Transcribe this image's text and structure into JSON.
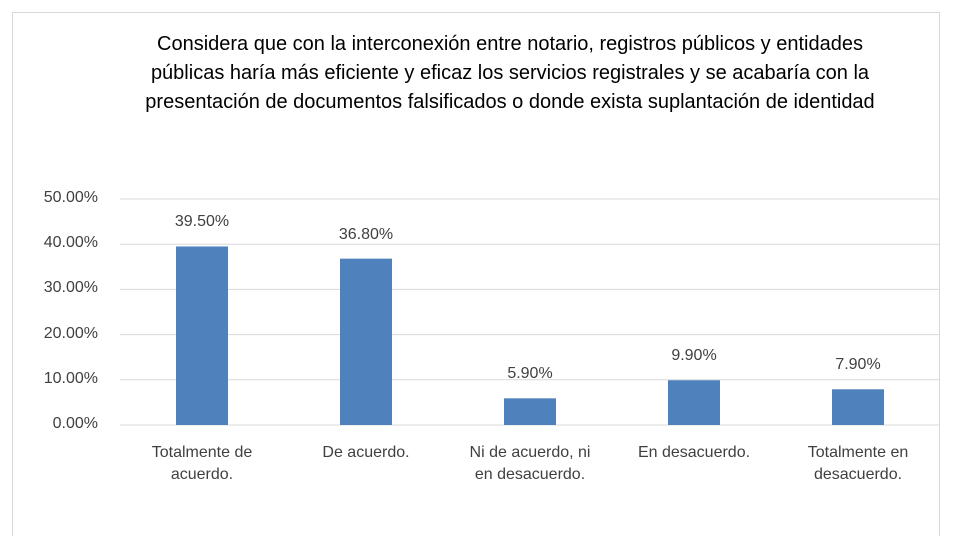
{
  "chart_data": {
    "type": "bar",
    "title": "Considera que con la interconexión entre notario, registros públicos y entidades públicas haría más eficiente y eficaz los servicios registrales y se acabaría con la presentación de documentos falsificados o donde exista suplantación de identidad",
    "categories": [
      "Totalmente de acuerdo.",
      "De acuerdo.",
      "Ni de acuerdo, ni en desacuerdo.",
      "En desacuerdo.",
      "Totalmente en desacuerdo."
    ],
    "values": [
      39.5,
      36.8,
      5.9,
      9.9,
      7.9
    ],
    "value_labels": [
      "39.50%",
      "36.80%",
      "5.90%",
      "9.90%",
      "7.90%"
    ],
    "color": "#4f81bd",
    "ylim": [
      0,
      50
    ],
    "yticks": [
      {
        "value": 0,
        "label": "0.00%"
      },
      {
        "value": 10,
        "label": "10.00%"
      },
      {
        "value": 20,
        "label": "20.00%"
      },
      {
        "value": 30,
        "label": "30.00%"
      },
      {
        "value": 40,
        "label": "40.00%"
      },
      {
        "value": 50,
        "label": "50.00%"
      }
    ],
    "grid": true
  }
}
